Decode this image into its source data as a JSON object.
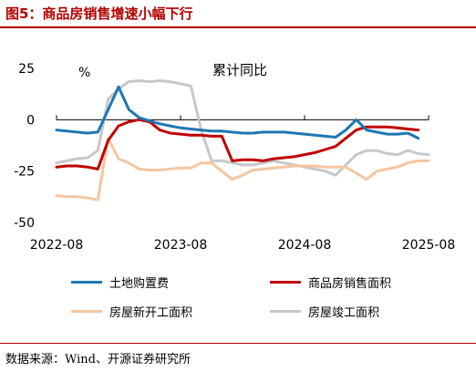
{
  "header": {
    "title": "图5：商品房销售增速小幅下行"
  },
  "footer": {
    "source": "数据来源：Wind、开源证券研究所"
  },
  "colors": {
    "title_red": "#b40000",
    "series": [
      "#1f77b4",
      "#c00000",
      "#f5c6a0",
      "#c8c8c8"
    ]
  },
  "chart_data": {
    "type": "line",
    "title": "累计同比",
    "ylabel": "%",
    "ylim": [
      -50,
      25
    ],
    "yticks": [
      25,
      0,
      -25,
      -50
    ],
    "xticks": [
      "2022-08",
      "2023-08",
      "2024-08",
      "2025-08"
    ],
    "x": [
      "2022-08",
      "2022-09",
      "2022-10",
      "2022-11",
      "2022-12",
      "2023-01",
      "2023-02",
      "2023-03",
      "2023-04",
      "2023-05",
      "2023-06",
      "2023-07",
      "2023-08",
      "2023-09",
      "2023-10",
      "2023-11",
      "2023-12",
      "2024-01",
      "2024-02",
      "2024-03",
      "2024-04",
      "2024-05",
      "2024-06",
      "2024-07",
      "2024-08",
      "2024-09",
      "2024-10",
      "2024-11",
      "2024-12",
      "2025-01",
      "2025-02",
      "2025-03",
      "2025-04",
      "2025-05",
      "2025-06",
      "2025-07",
      "2025-08"
    ],
    "series": [
      {
        "name": "土地购置费",
        "values": [
          -5,
          -5.5,
          -6,
          -6.5,
          -6,
          5,
          16,
          5,
          1,
          -0.5,
          -2,
          -3,
          -4,
          -4.5,
          -5,
          -5.5,
          -5.5,
          -6,
          -6.5,
          -6.5,
          -6,
          -6,
          -6,
          -6.5,
          -7,
          -7.5,
          -8,
          -8.5,
          -5,
          0,
          -5,
          -6,
          -7,
          -7,
          -6.5,
          -9,
          null
        ]
      },
      {
        "name": "商品房销售面积",
        "values": [
          -23,
          -22.5,
          -22.5,
          -23,
          -24,
          -10,
          -3,
          -1,
          0,
          -1,
          -5,
          -6.5,
          -7,
          -7.5,
          -7.5,
          -8,
          -8,
          -20,
          -19.5,
          -19.5,
          -20,
          -19,
          -18.5,
          -18,
          -17,
          -16,
          -14.5,
          -13,
          -9,
          -5,
          -3.5,
          -3.5,
          -3.5,
          -4,
          -4.5,
          -5,
          null
        ]
      },
      {
        "name": "房屋新开工面积",
        "values": [
          -37,
          -37.5,
          -37.5,
          -38,
          -39,
          -9,
          -19,
          -21,
          -24,
          -24.5,
          -24.5,
          -24,
          -23.5,
          -23.5,
          -21,
          -21,
          -25,
          -29,
          -27,
          -24.5,
          -24,
          -23.5,
          -23,
          -22.5,
          -22.5,
          -22.5,
          -23,
          -23,
          -23,
          -26,
          -29,
          -25,
          -24,
          -23,
          -21,
          -20,
          -20
        ]
      },
      {
        "name": "房屋竣工面积",
        "values": [
          -21,
          -20,
          -19,
          -18.5,
          -15,
          10,
          15,
          18.5,
          19,
          18.5,
          19,
          18.5,
          17.5,
          16.5,
          -5,
          -20,
          -20,
          -21,
          -22,
          -22,
          -21,
          -20,
          -21,
          -22,
          -23,
          -24,
          -25,
          -27,
          -22,
          -17,
          -15,
          -15,
          -16.5,
          -17,
          -15,
          -16.5,
          -17
        ]
      }
    ],
    "grid": false,
    "legend_position": "bottom"
  }
}
